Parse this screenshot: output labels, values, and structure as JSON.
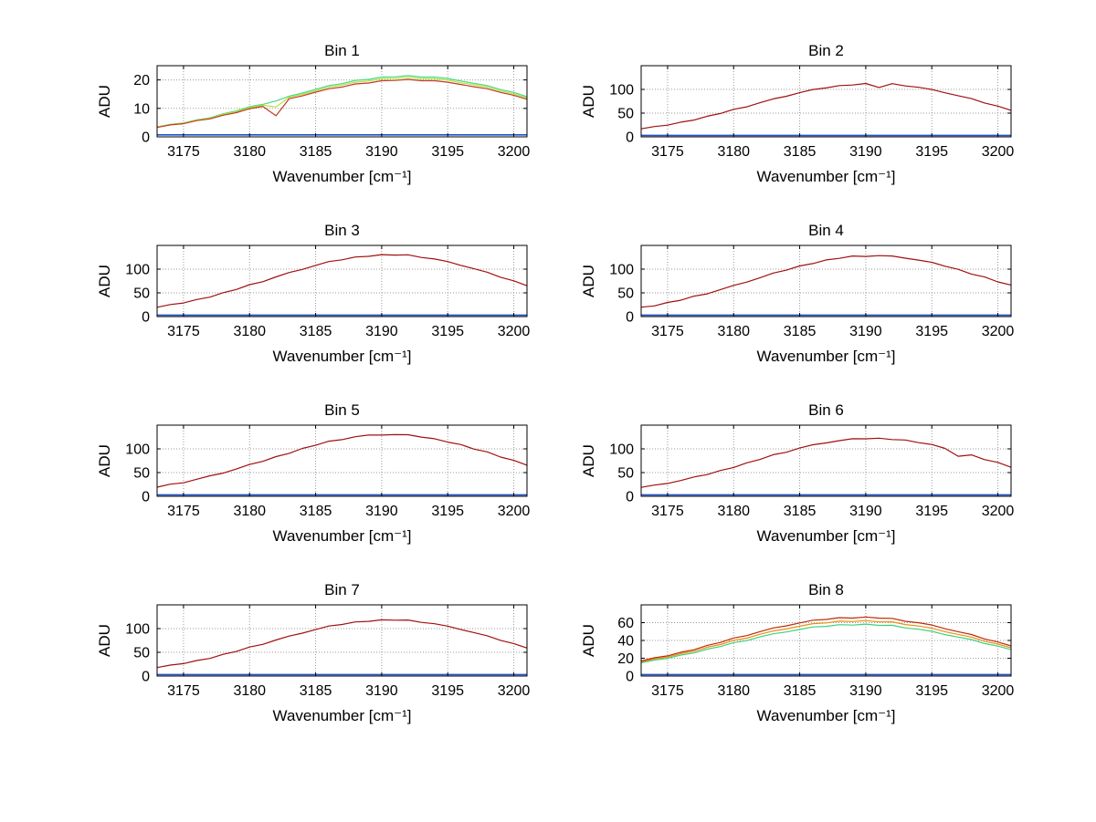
{
  "figure": {
    "background": "#ffffff",
    "grid_color": "#9a9a9a",
    "axis_color": "#000000"
  },
  "chart_data": [
    {
      "type": "line",
      "title": "Bin 1",
      "xlabel": "Wavenumber [cm⁻¹]",
      "ylabel": "ADU",
      "xlim": [
        3173,
        3201
      ],
      "ylim": [
        0,
        25
      ],
      "xticks": [
        3175,
        3180,
        3185,
        3190,
        3195,
        3200
      ],
      "yticks": [
        0,
        10,
        20
      ],
      "grid": true,
      "legend": "none",
      "x": [
        3173,
        3174,
        3175,
        3176,
        3177,
        3178,
        3179,
        3180,
        3181,
        3182,
        3183,
        3184,
        3185,
        3186,
        3187,
        3188,
        3189,
        3190,
        3191,
        3192,
        3193,
        3194,
        3195,
        3196,
        3197,
        3198,
        3199,
        3200,
        3201
      ],
      "series": [
        {
          "name": "spectrum-green",
          "color": "#45d985",
          "values": [
            3.5,
            4.4,
            4.9,
            6.0,
            6.7,
            8.1,
            9.1,
            10.6,
            11.4,
            12.6,
            14.3,
            15.4,
            16.7,
            18.0,
            18.7,
            19.8,
            20.2,
            21.0,
            21.1,
            21.5,
            21.0,
            21.0,
            20.5,
            19.6,
            18.8,
            18.0,
            16.6,
            15.6,
            14.1
          ]
        },
        {
          "name": "spectrum-yellow",
          "color": "#b9e03a",
          "values": [
            3.4,
            4.3,
            4.8,
            5.9,
            6.5,
            7.9,
            8.8,
            10.3,
            11.1,
            10.5,
            13.9,
            14.9,
            16.2,
            17.5,
            18.2,
            19.2,
            19.6,
            20.4,
            20.5,
            20.9,
            20.4,
            20.4,
            19.9,
            19.0,
            18.3,
            17.5,
            16.1,
            15.1,
            13.7
          ]
        },
        {
          "name": "spectrum-red",
          "color": "#c23b22",
          "values": [
            3.3,
            4.2,
            4.6,
            5.7,
            6.3,
            7.6,
            8.5,
            9.9,
            10.7,
            7.4,
            13.4,
            14.4,
            15.7,
            16.9,
            17.5,
            18.6,
            18.9,
            19.7,
            19.8,
            20.2,
            19.7,
            19.7,
            19.2,
            18.4,
            17.6,
            16.9,
            15.6,
            14.6,
            13.2
          ]
        },
        {
          "name": "dark-baseline",
          "color": "#2255cc",
          "constant": 0.7
        }
      ]
    },
    {
      "type": "line",
      "title": "Bin 2",
      "xlabel": "Wavenumber [cm⁻¹]",
      "ylabel": "ADU",
      "xlim": [
        3173,
        3201
      ],
      "ylim": [
        0,
        150
      ],
      "xticks": [
        3175,
        3180,
        3185,
        3190,
        3195,
        3200
      ],
      "yticks": [
        0,
        50,
        100
      ],
      "grid": true,
      "legend": "none",
      "x": [
        3173,
        3174,
        3175,
        3176,
        3177,
        3178,
        3179,
        3180,
        3181,
        3182,
        3183,
        3184,
        3185,
        3186,
        3187,
        3188,
        3189,
        3190,
        3191,
        3192,
        3193,
        3194,
        3195,
        3196,
        3197,
        3198,
        3199,
        3200,
        3201
      ],
      "series": [
        {
          "name": "spectrum-red",
          "color": "#a01010",
          "values": [
            16.9,
            21.8,
            24.7,
            31.0,
            35.3,
            43.4,
            49.2,
            58.0,
            63.3,
            72.0,
            80.0,
            85.6,
            93.0,
            99.9,
            103.1,
            108.1,
            109.3,
            112.5,
            104.0,
            112.1,
            107.3,
            104.5,
            99.9,
            92.9,
            86.8,
            80.5,
            71.3,
            64.9,
            56.0
          ]
        },
        {
          "name": "dark-baseline",
          "color": "#2255cc",
          "constant": 3
        }
      ]
    },
    {
      "type": "line",
      "title": "Bin 3",
      "xlabel": "Wavenumber [cm⁻¹]",
      "ylabel": "ADU",
      "xlim": [
        3173,
        3201
      ],
      "ylim": [
        0,
        150
      ],
      "xticks": [
        3175,
        3180,
        3185,
        3190,
        3195,
        3200
      ],
      "yticks": [
        0,
        50,
        100
      ],
      "grid": true,
      "legend": "none",
      "x": [
        3173,
        3174,
        3175,
        3176,
        3177,
        3178,
        3179,
        3180,
        3181,
        3182,
        3183,
        3184,
        3185,
        3186,
        3187,
        3188,
        3189,
        3190,
        3191,
        3192,
        3193,
        3194,
        3195,
        3196,
        3197,
        3198,
        3199,
        3200,
        3201
      ],
      "series": [
        {
          "name": "spectrum-red",
          "color": "#a01010",
          "values": [
            19.6,
            25.4,
            28.7,
            36.0,
            41.0,
            50.3,
            57.1,
            67.3,
            73.5,
            83.6,
            92.8,
            99.4,
            107.9,
            116.0,
            119.7,
            125.6,
            126.9,
            130.5,
            129.6,
            130.1,
            124.6,
            121.3,
            116.0,
            107.9,
            100.8,
            93.5,
            82.8,
            75.4,
            65.0
          ]
        },
        {
          "name": "dark-baseline",
          "color": "#2255cc",
          "constant": 3
        }
      ]
    },
    {
      "type": "line",
      "title": "Bin 4",
      "xlabel": "Wavenumber [cm⁻¹]",
      "ylabel": "ADU",
      "xlim": [
        3173,
        3201
      ],
      "ylim": [
        0,
        150
      ],
      "xticks": [
        3175,
        3180,
        3185,
        3190,
        3195,
        3200
      ],
      "yticks": [
        0,
        50,
        100
      ],
      "grid": true,
      "legend": "none",
      "x": [
        3173,
        3174,
        3175,
        3176,
        3177,
        3178,
        3179,
        3180,
        3181,
        3182,
        3183,
        3184,
        3185,
        3186,
        3187,
        3188,
        3189,
        3190,
        3191,
        3192,
        3193,
        3194,
        3195,
        3196,
        3197,
        3198,
        3199,
        3200,
        3201
      ],
      "series": [
        {
          "name": "spectrum-red",
          "color": "#a01010",
          "values": [
            19.8,
            22.5,
            29.9,
            34.5,
            43.0,
            47.8,
            57.0,
            65.8,
            72.7,
            81.9,
            91.7,
            97.8,
            106.7,
            111.7,
            119.5,
            122.7,
            127.6,
            126.7,
            128.4,
            127.6,
            123.0,
            119.0,
            114.5,
            106.1,
            99.7,
            89.6,
            83.5,
            73.1,
            66.5
          ]
        },
        {
          "name": "dark-baseline",
          "color": "#2255cc",
          "constant": 3
        }
      ]
    },
    {
      "type": "line",
      "title": "Bin 5",
      "xlabel": "Wavenumber [cm⁻¹]",
      "ylabel": "ADU",
      "xlim": [
        3173,
        3201
      ],
      "ylim": [
        0,
        150
      ],
      "xticks": [
        3175,
        3180,
        3185,
        3190,
        3195,
        3200
      ],
      "yticks": [
        0,
        50,
        100
      ],
      "grid": true,
      "legend": "none",
      "x": [
        3173,
        3174,
        3175,
        3176,
        3177,
        3178,
        3179,
        3180,
        3181,
        3182,
        3183,
        3184,
        3185,
        3186,
        3187,
        3188,
        3189,
        3190,
        3191,
        3192,
        3193,
        3194,
        3195,
        3196,
        3197,
        3198,
        3199,
        3200,
        3201
      ],
      "series": [
        {
          "name": "spectrum-red",
          "color": "#a01010",
          "values": [
            19.2,
            25.6,
            28.5,
            35.9,
            43.2,
            48.8,
            57.5,
            67.1,
            73.7,
            83.7,
            90.6,
            100.9,
            107.5,
            116.2,
            119.5,
            125.5,
            129.1,
            129.0,
            130.0,
            129.9,
            124.8,
            121.4,
            114.3,
            109.1,
            99.5,
            93.6,
            82.6,
            75.7,
            65.5
          ]
        },
        {
          "name": "dark-baseline",
          "color": "#2255cc",
          "constant": 3
        }
      ]
    },
    {
      "type": "line",
      "title": "Bin 6",
      "xlabel": "Wavenumber [cm⁻¹]",
      "ylabel": "ADU",
      "xlim": [
        3173,
        3201
      ],
      "ylim": [
        0,
        150
      ],
      "xticks": [
        3175,
        3180,
        3185,
        3190,
        3195,
        3200
      ],
      "yticks": [
        0,
        50,
        100
      ],
      "grid": true,
      "legend": "none",
      "x": [
        3173,
        3174,
        3175,
        3176,
        3177,
        3178,
        3179,
        3180,
        3181,
        3182,
        3183,
        3184,
        3185,
        3186,
        3187,
        3188,
        3189,
        3190,
        3191,
        3192,
        3193,
        3194,
        3195,
        3196,
        3197,
        3198,
        3199,
        3200,
        3201
      ],
      "series": [
        {
          "name": "spectrum-red",
          "color": "#a01010",
          "values": [
            18.8,
            23.6,
            27.1,
            33.3,
            40.8,
            45.8,
            54.4,
            60.7,
            70.6,
            77.7,
            87.6,
            92.9,
            101.7,
            108.6,
            112.5,
            117.4,
            121.4,
            121.1,
            122.5,
            119.6,
            118.6,
            113.1,
            109.3,
            100.9,
            84.5,
            87.3,
            77.4,
            71.6,
            61.2
          ]
        },
        {
          "name": "dark-baseline",
          "color": "#2255cc",
          "constant": 3
        }
      ]
    },
    {
      "type": "line",
      "title": "Bin 7",
      "xlabel": "Wavenumber [cm⁻¹]",
      "ylabel": "ADU",
      "xlim": [
        3173,
        3201
      ],
      "ylim": [
        0,
        150
      ],
      "xticks": [
        3175,
        3180,
        3185,
        3190,
        3195,
        3200
      ],
      "yticks": [
        0,
        50,
        100
      ],
      "grid": true,
      "legend": "none",
      "x": [
        3173,
        3174,
        3175,
        3176,
        3177,
        3178,
        3179,
        3180,
        3181,
        3182,
        3183,
        3184,
        3185,
        3186,
        3187,
        3188,
        3189,
        3190,
        3191,
        3192,
        3193,
        3194,
        3195,
        3196,
        3197,
        3198,
        3199,
        3200,
        3201
      ],
      "series": [
        {
          "name": "spectrum-red",
          "color": "#a01010",
          "values": [
            17.8,
            23.1,
            26.1,
            32.7,
            37.2,
            45.7,
            51.8,
            61.1,
            66.7,
            75.9,
            84.2,
            90.3,
            97.9,
            105.3,
            108.7,
            114.0,
            115.1,
            118.5,
            117.6,
            118.1,
            113.1,
            110.1,
            105.2,
            97.9,
            91.5,
            84.9,
            75.2,
            68.5,
            59.0
          ]
        },
        {
          "name": "dark-baseline",
          "color": "#2255cc",
          "constant": 3
        }
      ]
    },
    {
      "type": "line",
      "title": "Bin 8",
      "xlabel": "Wavenumber [cm⁻¹]",
      "ylabel": "ADU",
      "xlim": [
        3173,
        3201
      ],
      "ylim": [
        0,
        80
      ],
      "xticks": [
        3175,
        3180,
        3185,
        3190,
        3195,
        3200
      ],
      "yticks": [
        0,
        20,
        40,
        60
      ],
      "grid": true,
      "legend": "none",
      "x": [
        3173,
        3174,
        3175,
        3176,
        3177,
        3178,
        3179,
        3180,
        3181,
        3182,
        3183,
        3184,
        3185,
        3186,
        3187,
        3188,
        3189,
        3190,
        3191,
        3192,
        3193,
        3194,
        3195,
        3196,
        3197,
        3198,
        3199,
        3200,
        3201
      ],
      "series": [
        {
          "name": "spectrum-green",
          "color": "#3fd080",
          "values": [
            14.8,
            18.0,
            19.9,
            23.6,
            26.0,
            30.3,
            33.1,
            37.6,
            39.8,
            44.0,
            47.5,
            49.5,
            52.4,
            55.2,
            55.8,
            57.7,
            57.2,
            58.4,
            56.9,
            57.0,
            54.1,
            52.6,
            50.3,
            46.6,
            43.8,
            41.0,
            36.5,
            33.6,
            29.6
          ]
        },
        {
          "name": "spectrum-orange",
          "color": "#e89010",
          "values": [
            15.9,
            19.3,
            21.3,
            25.2,
            27.8,
            32.4,
            35.4,
            40.2,
            42.6,
            47.0,
            50.7,
            52.9,
            56.0,
            58.9,
            59.7,
            61.6,
            61.2,
            62.4,
            60.8,
            60.9,
            57.8,
            56.2,
            53.7,
            49.8,
            46.8,
            43.8,
            39.1,
            35.9,
            31.7
          ]
        },
        {
          "name": "spectrum-red",
          "color": "#c02a0a",
          "values": [
            16.9,
            20.5,
            22.7,
            26.8,
            29.5,
            34.5,
            37.7,
            42.8,
            45.4,
            50.0,
            54.0,
            56.4,
            59.7,
            62.8,
            63.6,
            65.6,
            65.1,
            66.4,
            65.1,
            64.8,
            61.5,
            59.9,
            57.3,
            53.1,
            49.8,
            46.7,
            41.6,
            38.3,
            33.8
          ]
        },
        {
          "name": "dark-baseline",
          "color": "#2255cc",
          "constant": 1.6
        }
      ]
    }
  ]
}
